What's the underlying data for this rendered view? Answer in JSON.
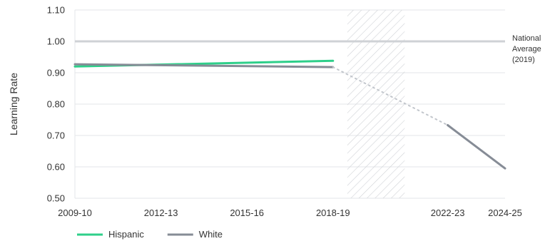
{
  "chart_data": {
    "type": "line",
    "ylabel": "Learning Rate",
    "xlabel": "",
    "ylim": [
      0.5,
      1.1
    ],
    "yticks": [
      "1.10",
      "1.00",
      "0.90",
      "0.80",
      "0.70",
      "0.60",
      "0.50"
    ],
    "xlim": [
      2009,
      2024
    ],
    "xticks": [
      {
        "label": "2009-10",
        "x": 2009
      },
      {
        "label": "2012-13",
        "x": 2012
      },
      {
        "label": "2015-16",
        "x": 2015
      },
      {
        "label": "2018-19",
        "x": 2018
      },
      {
        "label": "2022-23",
        "x": 2022
      },
      {
        "label": "2024-25",
        "x": 2024
      }
    ],
    "grid": true,
    "reference_line": {
      "y": 1.0,
      "label_lines": [
        "National",
        "Average",
        "(2019)"
      ]
    },
    "hatched_region": {
      "x_start": 2018.5,
      "x_end": 2020.5
    },
    "series": [
      {
        "name": "Hispanic",
        "color": "#2ecf8a",
        "points": [
          {
            "x": 2009,
            "y": 0.92
          },
          {
            "x": 2018,
            "y": 0.938
          }
        ]
      },
      {
        "name": "White",
        "color": "#868c96",
        "points": [
          {
            "x": 2009,
            "y": 0.927
          },
          {
            "x": 2018,
            "y": 0.918
          }
        ]
      },
      {
        "name": "",
        "color": "#c2c6cc",
        "dotted": true,
        "points": [
          {
            "x": 2018,
            "y": 0.918
          },
          {
            "x": 2022,
            "y": 0.733
          }
        ]
      },
      {
        "name": "",
        "color": "#868c96",
        "points": [
          {
            "x": 2022,
            "y": 0.733
          },
          {
            "x": 2024,
            "y": 0.595
          }
        ]
      }
    ],
    "legend": {
      "placement": "bottom-left",
      "entries": [
        {
          "name": "Hispanic",
          "color": "#2ecf8a"
        },
        {
          "name": "White",
          "color": "#868c96"
        }
      ]
    }
  }
}
